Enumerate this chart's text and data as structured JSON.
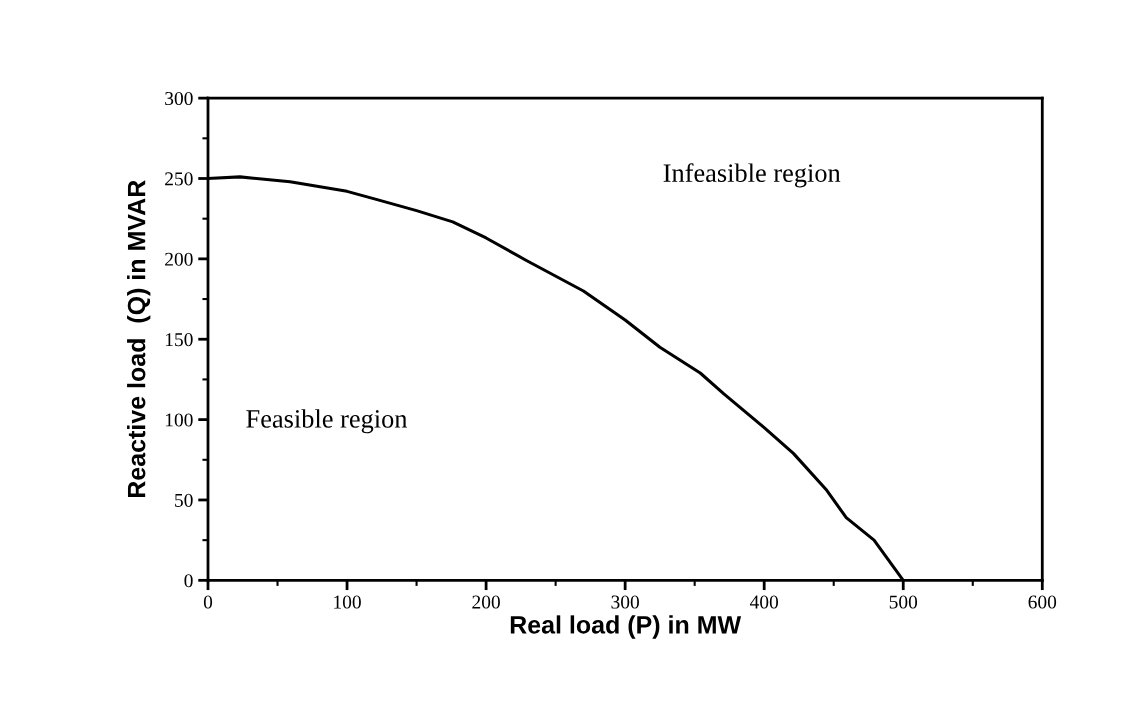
{
  "chart_data": {
    "type": "line",
    "xlabel": "Real load (P) in MW",
    "ylabel": "Reactive load  (Q) in MVAR",
    "x": [
      0,
      23,
      59,
      100,
      121,
      150,
      176,
      200,
      229,
      270,
      300,
      325,
      354,
      371,
      400,
      421,
      445,
      459,
      479,
      500
    ],
    "series": [
      {
        "color": "#000000",
        "values": [
          250,
          251,
          248,
          242,
          237,
          230,
          223,
          213,
          199,
          180,
          162,
          145,
          129,
          116,
          95,
          79,
          56,
          39,
          25,
          0
        ]
      }
    ],
    "xlim": [
      0,
      600
    ],
    "xticks": [
      0,
      100,
      200,
      300,
      400,
      500,
      600
    ],
    "ylim": [
      0,
      300
    ],
    "yticks": [
      0,
      50,
      100,
      150,
      200,
      250,
      300
    ],
    "annotations": [
      "Infeasible region",
      "Feasible region"
    ],
    "grid": false,
    "legend": false,
    "marker": "none",
    "line_style": "solid"
  }
}
